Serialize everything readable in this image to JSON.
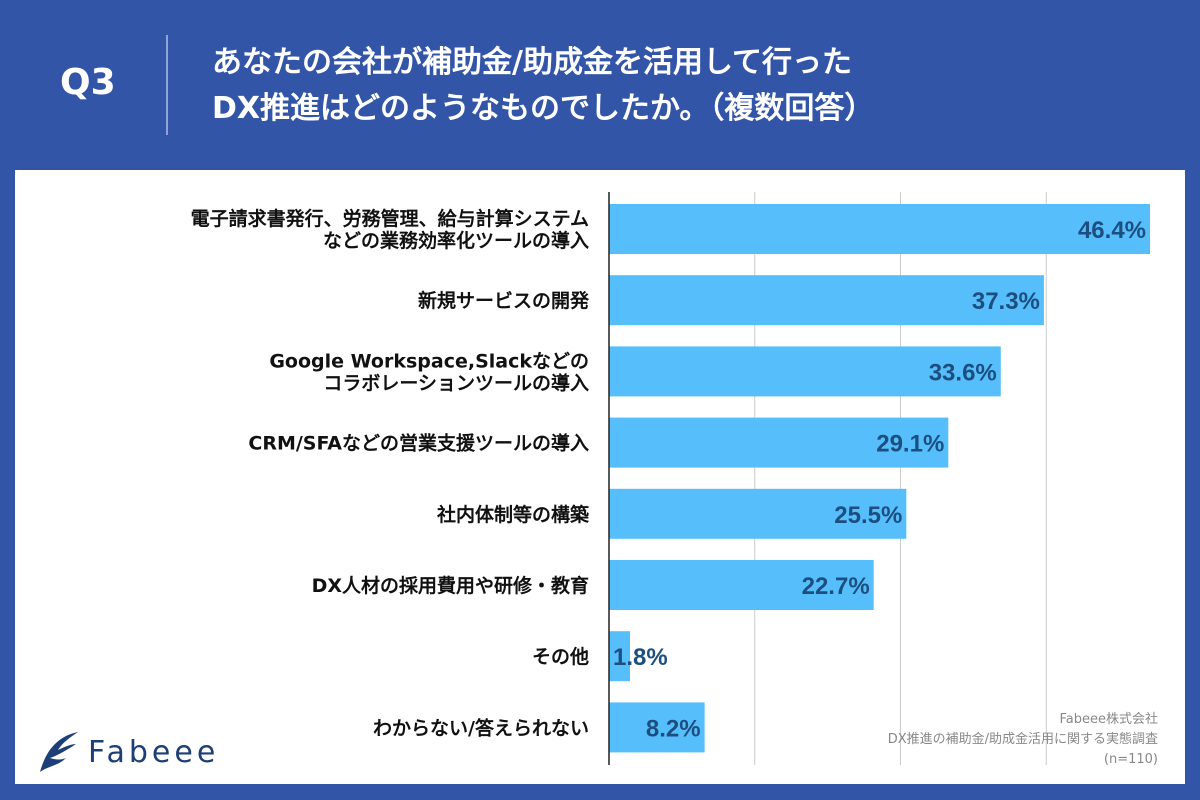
{
  "header": {
    "question": "Q3",
    "title_line1": "あなたの会社が補助金/助成金を活用して行った",
    "title_line2": "DX推進はどのようなものでしたか。（複数回答）"
  },
  "footer": {
    "logo_text": "Fabeee",
    "company": "Fabeee株式会社",
    "survey": "DX推進の補助金/助成金活用に関する実態調査",
    "sample": "(n=110)"
  },
  "colors": {
    "background": "#3355a8",
    "bar": "#56bffb",
    "label": "#1d4e80"
  },
  "chart_data": {
    "type": "bar",
    "orientation": "horizontal",
    "xlim": [
      0,
      50
    ],
    "grid": true,
    "categories": [
      [
        "電子請求書発行、労務管理、給与計算システム",
        "などの業務効率化ツールの導入"
      ],
      [
        "新規サービスの開発"
      ],
      [
        "Google Workspace,Slackなどの",
        "コラボレーションツールの導入"
      ],
      [
        "CRM/SFAなどの営業支援ツールの導入"
      ],
      [
        "社内体制等の構築"
      ],
      [
        "DX人材の採用費用や研修・教育"
      ],
      [
        "その他"
      ],
      [
        "わからない/答えられない"
      ]
    ],
    "values": [
      46.4,
      37.3,
      33.6,
      29.1,
      25.5,
      22.7,
      1.8,
      8.2
    ],
    "data_labels": [
      "46.4%",
      "37.3%",
      "33.6%",
      "29.1%",
      "25.5%",
      "22.7%",
      "1.8%",
      "8.2%"
    ]
  }
}
